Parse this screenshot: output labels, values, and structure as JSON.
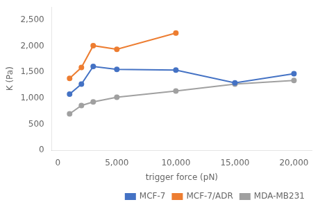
{
  "chart_data": {
    "type": "line",
    "x": [
      1000,
      2000,
      3000,
      5000,
      10000,
      15000,
      20000
    ],
    "series": [
      {
        "name": "MCF-7",
        "color": "#4472C4",
        "marker": "circle",
        "values": [
          1080,
          1270,
          1610,
          1555,
          1540,
          1295,
          1470
        ]
      },
      {
        "name": "MCF-7/ADR",
        "color": "#ED7D31",
        "marker": "circle",
        "values": [
          1380,
          1590,
          2010,
          1940,
          2250,
          null,
          null
        ]
      },
      {
        "name": "MDA-MB231",
        "color": "#A0A0A0",
        "marker": "circle",
        "values": [
          700,
          860,
          930,
          1020,
          1140,
          1270,
          1340
        ]
      }
    ],
    "xlabel": "trigger force (pN)",
    "ylabel": "K (Pa)",
    "xlim": [
      -500,
      21500
    ],
    "xticks": [
      0,
      {
        "value": 5000,
        "label": "5,000"
      },
      {
        "value": 10000,
        "label": "10,000"
      },
      {
        "value": 15000,
        "label": "15,000"
      },
      {
        "value": 20000,
        "label": "20,000"
      }
    ],
    "ylim": [
      0,
      2750
    ],
    "yticks": [
      0,
      500,
      {
        "value": 1000,
        "label": "1,000"
      },
      {
        "value": 1500,
        "label": "1,500"
      },
      {
        "value": 2000,
        "label": "2,000"
      },
      {
        "value": 2500,
        "label": "2,500"
      }
    ],
    "grid": false,
    "legend": "lower right"
  }
}
